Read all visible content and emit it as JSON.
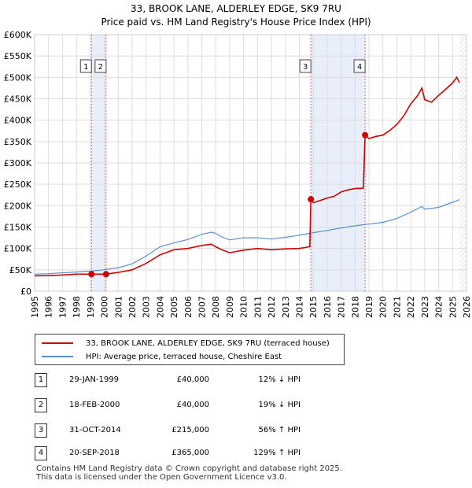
{
  "title_line1": "33, BROOK LANE, ALDERLEY EDGE, SK9 7RU",
  "title_line2": "Price paid vs. HM Land Registry's House Price Index (HPI)",
  "colors": {
    "property": "#cc0000",
    "hpi": "#5b8fd0",
    "shade": "#e8eefa"
  },
  "chart_data": {
    "type": "line",
    "y_ticks": [
      "£0",
      "£50K",
      "£100K",
      "£150K",
      "£200K",
      "£250K",
      "£300K",
      "£350K",
      "£400K",
      "£450K",
      "£500K",
      "£550K",
      "£600K"
    ],
    "x_ticks": [
      "1995",
      "1996",
      "1997",
      "1998",
      "1999",
      "2000",
      "2001",
      "2002",
      "2003",
      "2004",
      "2005",
      "2006",
      "2007",
      "2008",
      "2009",
      "2010",
      "2011",
      "2012",
      "2013",
      "2014",
      "2015",
      "2016",
      "2017",
      "2018",
      "2019",
      "2020",
      "2021",
      "2022",
      "2023",
      "2024",
      "2025",
      "2026"
    ],
    "xlim": [
      1995,
      2026
    ],
    "ylim": [
      0,
      600000
    ],
    "series": [
      {
        "name": "33, BROOK LANE, ALDERLEY EDGE, SK9 7RU (terraced house)",
        "x": [
          1995,
          1996,
          1997,
          1998,
          1999.08,
          2000.13,
          2001,
          2002,
          2003,
          2004,
          2004.5,
          2005,
          2006,
          2007,
          2007.7,
          2008,
          2008.5,
          2009,
          2010,
          2011,
          2012,
          2013,
          2014,
          2014.75,
          2014.83,
          2015,
          2015.5,
          2016,
          2016.5,
          2017,
          2017.5,
          2018,
          2018.6,
          2018.72,
          2019,
          2019.5,
          2020,
          2020.5,
          2021,
          2021.5,
          2022,
          2022.5,
          2022.8,
          2023,
          2023.5,
          2024,
          2024.5,
          2025,
          2025.3,
          2025.5
        ],
        "y": [
          36000,
          36500,
          38000,
          40000,
          40000,
          40000,
          44000,
          50000,
          65000,
          85000,
          91000,
          97000,
          100000,
          107000,
          110000,
          104000,
          96000,
          90000,
          96000,
          100000,
          97000,
          99000,
          100000,
          104000,
          215000,
          207000,
          212000,
          218000,
          222000,
          232000,
          237000,
          240000,
          241000,
          365000,
          357000,
          362000,
          365000,
          376000,
          390000,
          410000,
          438000,
          458000,
          475000,
          448000,
          442000,
          458000,
          472000,
          487000,
          500000,
          488000
        ]
      },
      {
        "name": "HPI: Average price, terraced house, Cheshire East",
        "x": [
          1995,
          1996,
          1997,
          1998,
          1999,
          2000,
          2001,
          2002,
          2003,
          2004,
          2005,
          2006,
          2007,
          2007.7,
          2008,
          2008.5,
          2009,
          2010,
          2011,
          2012,
          2013,
          2014,
          2015,
          2016,
          2017,
          2018,
          2019,
          2020,
          2021,
          2022,
          2022.8,
          2023,
          2024,
          2025,
          2025.5
        ],
        "y": [
          40000,
          41000,
          43000,
          45000,
          47000,
          50000,
          55000,
          64000,
          82000,
          104000,
          113000,
          121000,
          133000,
          138000,
          135000,
          126000,
          120000,
          125000,
          125000,
          122000,
          126000,
          131000,
          137000,
          142000,
          148000,
          153000,
          157000,
          161000,
          170000,
          185000,
          198000,
          192000,
          196000,
          208000,
          214000
        ]
      }
    ],
    "sales": [
      {
        "num": "1",
        "x": 1999.08,
        "y": 40000
      },
      {
        "num": "2",
        "x": 2000.13,
        "y": 40000
      },
      {
        "num": "3",
        "x": 2014.83,
        "y": 215000
      },
      {
        "num": "4",
        "x": 2018.72,
        "y": 365000
      }
    ],
    "shaded_ranges": [
      [
        1999.08,
        2000.13
      ],
      [
        2014.83,
        2018.72
      ]
    ]
  },
  "legend": {
    "property_label": "33, BROOK LANE, ALDERLEY EDGE, SK9 7RU (terraced house)",
    "hpi_label": "HPI: Average price, terraced house, Cheshire East"
  },
  "transactions": [
    {
      "num": "1",
      "date": "29-JAN-1999",
      "price": "£40,000",
      "hpi": "12% ↓ HPI"
    },
    {
      "num": "2",
      "date": "18-FEB-2000",
      "price": "£40,000",
      "hpi": "19% ↓ HPI"
    },
    {
      "num": "3",
      "date": "31-OCT-2014",
      "price": "£215,000",
      "hpi": "56% ↑ HPI"
    },
    {
      "num": "4",
      "date": "20-SEP-2018",
      "price": "£365,000",
      "hpi": "129% ↑ HPI"
    }
  ],
  "footer_line1": "Contains HM Land Registry data © Crown copyright and database right 2025.",
  "footer_line2": "This data is licensed under the Open Government Licence v3.0."
}
